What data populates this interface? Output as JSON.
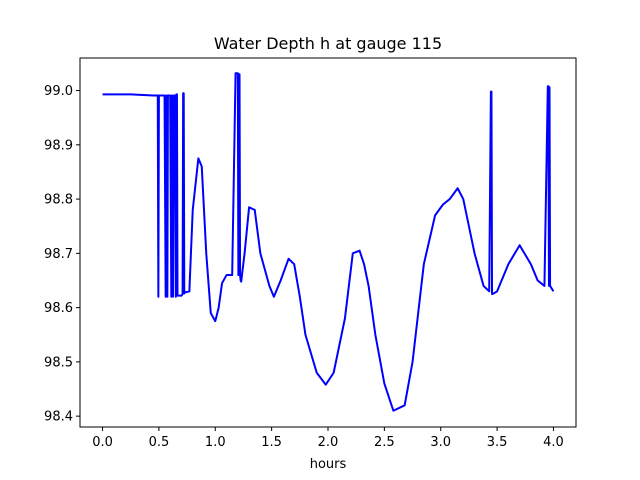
{
  "chart_data": {
    "type": "line",
    "title": "Water Depth h at gauge 115",
    "xlabel": "hours",
    "ylabel": "",
    "xlim": [
      -0.2,
      4.2
    ],
    "ylim": [
      98.38,
      99.06
    ],
    "xticks": [
      0.0,
      0.5,
      1.0,
      1.5,
      2.0,
      2.5,
      3.0,
      3.5,
      4.0
    ],
    "xtick_labels": [
      "0.0",
      "0.5",
      "1.0",
      "1.5",
      "2.0",
      "2.5",
      "3.0",
      "3.5",
      "4.0"
    ],
    "yticks": [
      98.4,
      98.5,
      98.6,
      98.7,
      98.8,
      98.9,
      99.0
    ],
    "ytick_labels": [
      "98.4",
      "98.5",
      "98.6",
      "98.7",
      "98.8",
      "98.9",
      "99.0"
    ],
    "grid": false,
    "series": [
      {
        "color": "#0000ff",
        "x": [
          0.0,
          0.25,
          0.45,
          0.49,
          0.495,
          0.5,
          0.505,
          0.51,
          0.55,
          0.56,
          0.565,
          0.57,
          0.575,
          0.58,
          0.6,
          0.61,
          0.615,
          0.62,
          0.625,
          0.63,
          0.64,
          0.65,
          0.655,
          0.66,
          0.665,
          0.67,
          0.7,
          0.71,
          0.715,
          0.72,
          0.725,
          0.73,
          0.77,
          0.8,
          0.85,
          0.88,
          0.92,
          0.96,
          1.0,
          1.03,
          1.06,
          1.1,
          1.15,
          1.18,
          1.2,
          1.205,
          1.21,
          1.215,
          1.22,
          1.225,
          1.23,
          1.26,
          1.3,
          1.35,
          1.4,
          1.44,
          1.48,
          1.52,
          1.58,
          1.65,
          1.7,
          1.75,
          1.8,
          1.9,
          1.98,
          2.05,
          2.15,
          2.22,
          2.28,
          2.32,
          2.36,
          2.42,
          2.5,
          2.58,
          2.68,
          2.75,
          2.85,
          2.95,
          3.02,
          3.08,
          3.15,
          3.2,
          3.3,
          3.38,
          3.43,
          3.445,
          3.45,
          3.455,
          3.46,
          3.5,
          3.6,
          3.7,
          3.8,
          3.86,
          3.92,
          3.95,
          3.955,
          3.96,
          3.965,
          3.97,
          4.0
        ],
        "y": [
          98.993,
          98.993,
          98.991,
          98.991,
          98.62,
          98.991,
          98.991,
          98.991,
          98.991,
          98.62,
          98.991,
          98.991,
          98.62,
          98.991,
          98.991,
          98.62,
          98.991,
          98.991,
          98.62,
          98.991,
          98.991,
          98.62,
          98.993,
          98.993,
          98.622,
          98.622,
          98.622,
          98.625,
          98.995,
          98.995,
          98.626,
          98.628,
          98.63,
          98.78,
          98.875,
          98.86,
          98.7,
          98.59,
          98.575,
          98.6,
          98.645,
          98.66,
          98.66,
          99.032,
          99.032,
          98.66,
          99.03,
          99.03,
          98.66,
          98.65,
          98.648,
          98.7,
          98.785,
          98.78,
          98.7,
          98.67,
          98.64,
          98.62,
          98.65,
          98.69,
          98.68,
          98.62,
          98.55,
          98.48,
          98.458,
          98.48,
          98.58,
          98.7,
          98.705,
          98.68,
          98.64,
          98.55,
          98.46,
          98.41,
          98.42,
          98.5,
          98.68,
          98.77,
          98.79,
          98.8,
          98.82,
          98.8,
          98.7,
          98.64,
          98.63,
          98.998,
          98.998,
          98.625,
          98.625,
          98.63,
          98.68,
          98.715,
          98.68,
          98.65,
          98.64,
          99.008,
          99.008,
          98.64,
          99.006,
          98.64,
          98.63
        ]
      }
    ]
  }
}
